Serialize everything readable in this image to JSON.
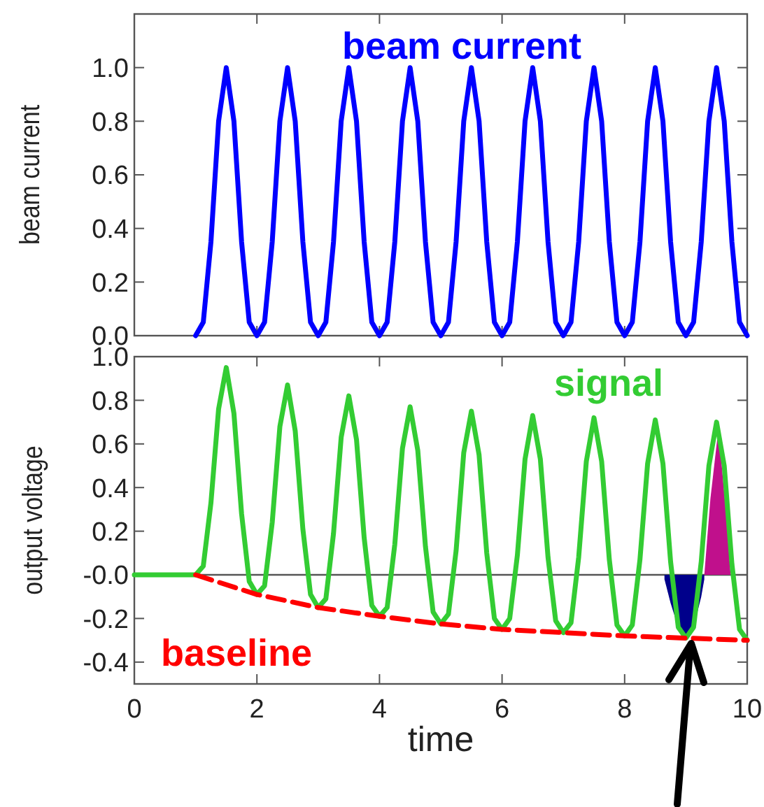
{
  "chart_data": [
    {
      "type": "line",
      "ylabel": "beam current",
      "xlim": [
        0,
        10
      ],
      "ylim": [
        0,
        1.2
      ],
      "xticks": [
        0,
        2,
        4,
        6,
        8,
        10
      ],
      "yticks": [
        {
          "value": 0,
          "label": "0.0"
        },
        {
          "value": 0.2,
          "label": "0.2"
        },
        {
          "value": 0.4,
          "label": "0.4"
        },
        {
          "value": 0.6,
          "label": "0.6"
        },
        {
          "value": 0.8,
          "label": "0.8"
        },
        {
          "value": 1,
          "label": "1.0"
        }
      ],
      "tick_labels": "y",
      "series": [
        {
          "name": "beam current",
          "color": "#0000ff",
          "x": [
            1,
            1.125,
            1.25,
            1.375,
            1.5,
            1.625,
            1.75,
            1.875,
            2,
            2.125,
            2.25,
            2.375,
            2.5,
            2.625,
            2.75,
            2.875,
            3,
            3.125,
            3.25,
            3.375,
            3.5,
            3.625,
            3.75,
            3.875,
            4,
            4.125,
            4.25,
            4.375,
            4.5,
            4.625,
            4.75,
            4.875,
            5,
            5.125,
            5.25,
            5.375,
            5.5,
            5.625,
            5.75,
            5.875,
            6,
            6.125,
            6.25,
            6.375,
            6.5,
            6.625,
            6.75,
            6.875,
            7,
            7.125,
            7.25,
            7.375,
            7.5,
            7.625,
            7.75,
            7.875,
            8,
            8.125,
            8.25,
            8.375,
            8.5,
            8.625,
            8.75,
            8.875,
            9,
            9.125,
            9.25,
            9.375,
            9.5,
            9.625,
            9.75,
            9.875,
            10
          ],
          "values": [
            0,
            0.05,
            0.35,
            0.8,
            1,
            0.8,
            0.35,
            0.05,
            0,
            0.05,
            0.35,
            0.8,
            1,
            0.8,
            0.35,
            0.05,
            0,
            0.05,
            0.35,
            0.8,
            1,
            0.8,
            0.35,
            0.05,
            0,
            0.05,
            0.35,
            0.8,
            1,
            0.8,
            0.35,
            0.05,
            0,
            0.05,
            0.35,
            0.8,
            1,
            0.8,
            0.35,
            0.05,
            0,
            0.05,
            0.35,
            0.8,
            1,
            0.8,
            0.35,
            0.05,
            0,
            0.05,
            0.35,
            0.8,
            1,
            0.8,
            0.35,
            0.05,
            0,
            0.05,
            0.35,
            0.8,
            1,
            0.8,
            0.35,
            0.05,
            0,
            0.05,
            0.35,
            0.8,
            1,
            0.8,
            0.35,
            0.05,
            0
          ]
        }
      ]
    },
    {
      "type": "line",
      "xlabel": "time",
      "ylabel": "output voltage",
      "xlim": [
        0,
        10
      ],
      "ylim": [
        -0.5,
        1
      ],
      "xticks": [
        0,
        2,
        4,
        6,
        8,
        10
      ],
      "yticks": [
        {
          "value": -0.4,
          "label": "-0.4"
        },
        {
          "value": -0.2,
          "label": "-0.2"
        },
        {
          "value": 0,
          "label": "-0.0"
        },
        {
          "value": 0.2,
          "label": "0.2"
        },
        {
          "value": 0.4,
          "label": "0.4"
        },
        {
          "value": 0.6,
          "label": "0.6"
        },
        {
          "value": 0.8,
          "label": "0.8"
        },
        {
          "value": 1,
          "label": "1.0"
        }
      ],
      "ref_lines": [
        {
          "axis": "y",
          "value": 0,
          "color": "#555555"
        }
      ],
      "series": [
        {
          "type": "area",
          "color": "#00008b",
          "x": [
            8.65,
            8.75,
            8.875,
            9,
            9.125,
            9.25,
            9.3
          ],
          "values": [
            -0.02,
            -0.13,
            -0.24,
            -0.29,
            -0.24,
            -0.1,
            -0.02
          ]
        },
        {
          "type": "area",
          "color": "#c0108c",
          "x": [
            9.3,
            9.4,
            9.53,
            9.65,
            9.73
          ],
          "values": [
            0,
            0.35,
            0.67,
            0.3,
            0
          ]
        },
        {
          "name": "signal",
          "color": "#33cc33",
          "x": [
            0,
            1,
            1.125,
            1.25,
            1.375,
            1.5,
            1.625,
            1.75,
            1.875,
            2,
            2.125,
            2.25,
            2.375,
            2.5,
            2.625,
            2.75,
            2.875,
            3,
            3.125,
            3.25,
            3.375,
            3.5,
            3.625,
            3.75,
            3.875,
            4,
            4.125,
            4.25,
            4.375,
            4.5,
            4.625,
            4.75,
            4.875,
            5,
            5.125,
            5.25,
            5.375,
            5.5,
            5.625,
            5.75,
            5.875,
            6,
            6.125,
            6.25,
            6.375,
            6.5,
            6.625,
            6.75,
            6.875,
            7,
            7.125,
            7.25,
            7.375,
            7.5,
            7.625,
            7.75,
            7.875,
            8,
            8.125,
            8.25,
            8.375,
            8.5,
            8.625,
            8.75,
            8.875,
            9,
            9.125,
            9.25,
            9.375,
            9.5,
            9.625,
            9.75,
            9.875,
            10
          ],
          "values": [
            0,
            0,
            0.04,
            0.33,
            0.76,
            0.95,
            0.74,
            0.28,
            -0.03,
            -0.09,
            -0.05,
            0.24,
            0.68,
            0.87,
            0.66,
            0.21,
            -0.09,
            -0.15,
            -0.11,
            0.19,
            0.63,
            0.82,
            0.62,
            0.17,
            -0.14,
            -0.19,
            -0.15,
            0.14,
            0.58,
            0.77,
            0.57,
            0.13,
            -0.17,
            -0.225,
            -0.18,
            0.11,
            0.56,
            0.75,
            0.55,
            0.1,
            -0.2,
            -0.25,
            -0.2,
            0.09,
            0.53,
            0.73,
            0.53,
            0.08,
            -0.21,
            -0.265,
            -0.22,
            0.08,
            0.52,
            0.72,
            0.52,
            0.07,
            -0.23,
            -0.28,
            -0.23,
            0.07,
            0.51,
            0.71,
            0.51,
            0.06,
            -0.24,
            -0.29,
            -0.24,
            0.06,
            0.5,
            0.7,
            0.5,
            0.05,
            -0.25,
            -0.3
          ]
        },
        {
          "name": "baseline",
          "color": "#ff0000",
          "line_style": "dashed",
          "x": [
            1,
            2,
            3,
            4,
            5,
            6,
            7,
            8,
            9,
            10
          ],
          "values": [
            0,
            -0.09,
            -0.15,
            -0.19,
            -0.225,
            -0.25,
            -0.265,
            -0.28,
            -0.29,
            -0.3
          ]
        }
      ]
    }
  ]
}
